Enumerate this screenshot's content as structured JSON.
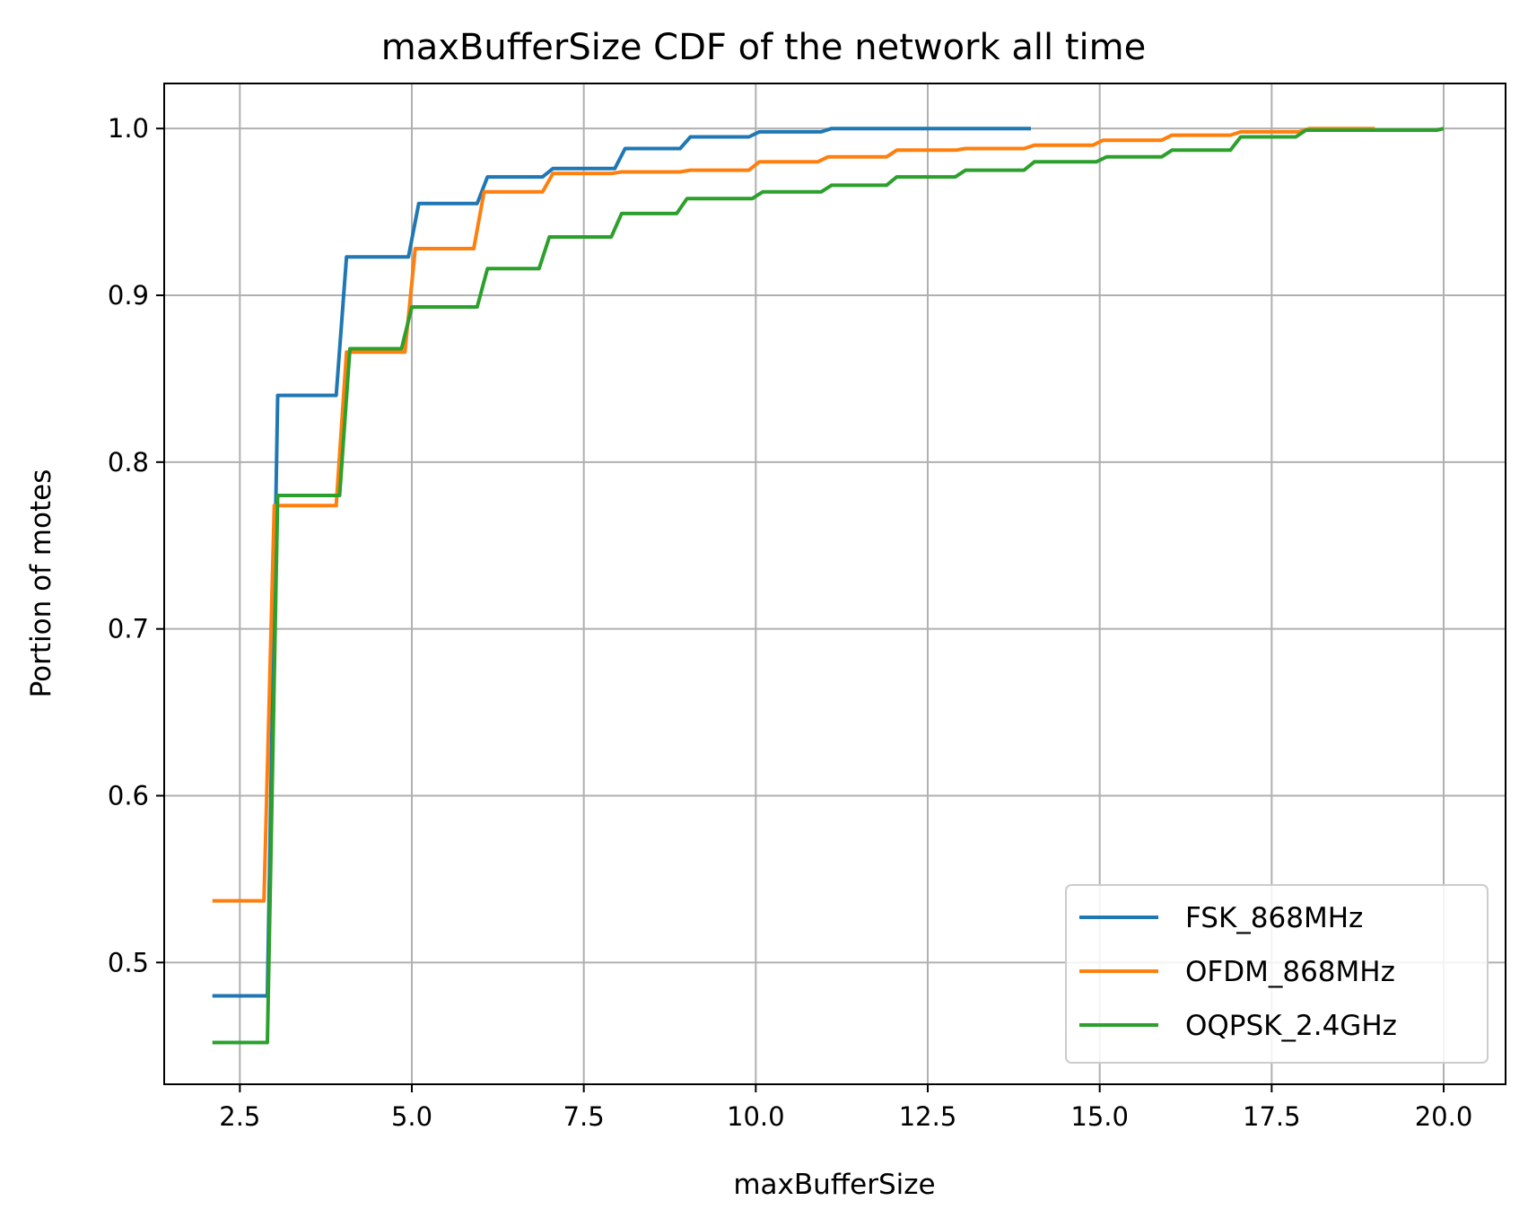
{
  "chart_data": {
    "type": "line",
    "title": "maxBufferSize CDF of the network all time",
    "xlabel": "maxBufferSize",
    "ylabel": "Portion of motes",
    "xlim": [
      1.4,
      20.9
    ],
    "ylim": [
      0.427,
      1.027
    ],
    "xticks": [
      2.5,
      5.0,
      7.5,
      10.0,
      12.5,
      15.0,
      17.5,
      20.0
    ],
    "xtick_labels": [
      "2.5",
      "5.0",
      "7.5",
      "10.0",
      "12.5",
      "15.0",
      "17.5",
      "20.0"
    ],
    "yticks": [
      0.5,
      0.6,
      0.7,
      0.8,
      0.9,
      1.0
    ],
    "ytick_labels": [
      "0.5",
      "0.6",
      "0.7",
      "0.8",
      "0.9",
      "1.0"
    ],
    "grid": true,
    "legend_position": "lower right",
    "series": [
      {
        "name": "FSK_868MHz",
        "color": "#1f77b4",
        "points": [
          [
            2.1,
            0.48
          ],
          [
            2.9,
            0.48
          ],
          [
            3.05,
            0.84
          ],
          [
            3.9,
            0.84
          ],
          [
            4.05,
            0.923
          ],
          [
            4.95,
            0.923
          ],
          [
            5.1,
            0.955
          ],
          [
            5.95,
            0.955
          ],
          [
            6.1,
            0.971
          ],
          [
            6.9,
            0.971
          ],
          [
            7.05,
            0.976
          ],
          [
            7.95,
            0.976
          ],
          [
            8.1,
            0.988
          ],
          [
            8.9,
            0.988
          ],
          [
            9.05,
            0.995
          ],
          [
            9.9,
            0.995
          ],
          [
            10.05,
            0.998
          ],
          [
            10.95,
            0.998
          ],
          [
            11.1,
            1.0
          ],
          [
            14.0,
            1.0
          ]
        ]
      },
      {
        "name": "OFDM_868MHz",
        "color": "#ff7f0e",
        "points": [
          [
            2.1,
            0.537
          ],
          [
            2.85,
            0.537
          ],
          [
            3.0,
            0.774
          ],
          [
            3.9,
            0.774
          ],
          [
            4.05,
            0.866
          ],
          [
            4.9,
            0.866
          ],
          [
            5.05,
            0.928
          ],
          [
            5.9,
            0.928
          ],
          [
            6.05,
            0.962
          ],
          [
            6.9,
            0.962
          ],
          [
            7.05,
            0.973
          ],
          [
            7.9,
            0.973
          ],
          [
            8.05,
            0.974
          ],
          [
            8.9,
            0.974
          ],
          [
            9.05,
            0.975
          ],
          [
            9.9,
            0.975
          ],
          [
            10.05,
            0.98
          ],
          [
            10.9,
            0.98
          ],
          [
            11.05,
            0.983
          ],
          [
            11.9,
            0.983
          ],
          [
            12.05,
            0.987
          ],
          [
            12.9,
            0.987
          ],
          [
            13.05,
            0.988
          ],
          [
            13.9,
            0.988
          ],
          [
            14.05,
            0.99
          ],
          [
            14.9,
            0.99
          ],
          [
            15.05,
            0.993
          ],
          [
            15.9,
            0.993
          ],
          [
            16.05,
            0.996
          ],
          [
            16.9,
            0.996
          ],
          [
            17.05,
            0.998
          ],
          [
            17.9,
            0.998
          ],
          [
            18.05,
            1.0
          ],
          [
            19.0,
            1.0
          ]
        ]
      },
      {
        "name": "OQPSK_2.4GHz",
        "color": "#2ca02c",
        "points": [
          [
            2.1,
            0.452
          ],
          [
            2.9,
            0.452
          ],
          [
            3.05,
            0.78
          ],
          [
            3.95,
            0.78
          ],
          [
            4.1,
            0.868
          ],
          [
            4.85,
            0.868
          ],
          [
            5.0,
            0.893
          ],
          [
            5.95,
            0.893
          ],
          [
            6.1,
            0.916
          ],
          [
            6.85,
            0.916
          ],
          [
            7.0,
            0.935
          ],
          [
            7.9,
            0.935
          ],
          [
            8.05,
            0.949
          ],
          [
            8.85,
            0.949
          ],
          [
            9.0,
            0.958
          ],
          [
            9.95,
            0.958
          ],
          [
            10.1,
            0.962
          ],
          [
            10.95,
            0.962
          ],
          [
            11.1,
            0.966
          ],
          [
            11.9,
            0.966
          ],
          [
            12.05,
            0.971
          ],
          [
            12.9,
            0.971
          ],
          [
            13.05,
            0.975
          ],
          [
            13.9,
            0.975
          ],
          [
            14.05,
            0.98
          ],
          [
            14.95,
            0.98
          ],
          [
            15.1,
            0.983
          ],
          [
            15.9,
            0.983
          ],
          [
            16.05,
            0.987
          ],
          [
            16.9,
            0.987
          ],
          [
            17.05,
            0.995
          ],
          [
            17.85,
            0.995
          ],
          [
            18.0,
            0.999
          ],
          [
            19.9,
            0.999
          ],
          [
            20.0,
            1.0
          ]
        ]
      }
    ]
  }
}
